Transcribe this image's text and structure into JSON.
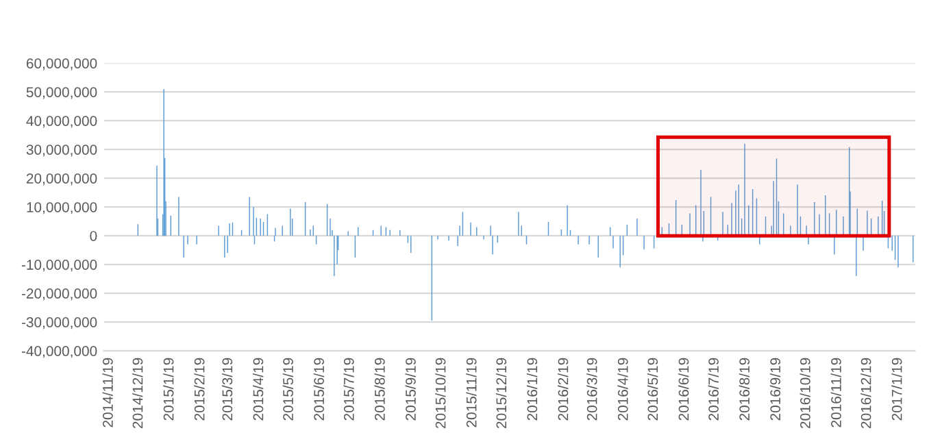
{
  "chart_data": {
    "type": "bar",
    "x": [
      "2014-12-18",
      "2015-01-06",
      "2015-01-07",
      "2015-01-12",
      "2015-01-13",
      "2015-01-14",
      "2015-01-15",
      "2015-01-20",
      "2015-01-28",
      "2015-02-02",
      "2015-02-06",
      "2015-02-15",
      "2015-03-09",
      "2015-03-15",
      "2015-03-18",
      "2015-03-20",
      "2015-03-23",
      "2015-04-01",
      "2015-04-09",
      "2015-04-13",
      "2015-04-14",
      "2015-04-16",
      "2015-04-20",
      "2015-04-23",
      "2015-04-27",
      "2015-05-04",
      "2015-05-05",
      "2015-05-12",
      "2015-05-20",
      "2015-05-22",
      "2015-06-04",
      "2015-06-09",
      "2015-06-12",
      "2015-06-15",
      "2015-06-26",
      "2015-06-29",
      "2015-07-01",
      "2015-07-03",
      "2015-07-06",
      "2015-07-07",
      "2015-07-17",
      "2015-07-24",
      "2015-07-27",
      "2015-08-11",
      "2015-08-19",
      "2015-08-24",
      "2015-08-28",
      "2015-09-07",
      "2015-09-15",
      "2015-09-18",
      "2015-10-09",
      "2015-10-15",
      "2015-10-26",
      "2015-11-04",
      "2015-11-06",
      "2015-11-09",
      "2015-11-17",
      "2015-11-23",
      "2015-11-30",
      "2015-12-07",
      "2015-12-09",
      "2015-12-14",
      "2016-01-04",
      "2016-01-07",
      "2016-01-12",
      "2016-02-03",
      "2016-02-16",
      "2016-02-22",
      "2016-02-25",
      "2016-03-04",
      "2016-03-15",
      "2016-03-24",
      "2016-04-05",
      "2016-04-08",
      "2016-04-15",
      "2016-04-18",
      "2016-04-22",
      "2016-05-02",
      "2016-05-09",
      "2016-05-19",
      "2016-05-27",
      "2016-06-03",
      "2016-06-10",
      "2016-06-16",
      "2016-06-24",
      "2016-06-30",
      "2016-07-05",
      "2016-07-07",
      "2016-07-08",
      "2016-07-15",
      "2016-07-22",
      "2016-07-27",
      "2016-08-01",
      "2016-08-05",
      "2016-08-09",
      "2016-08-12",
      "2016-08-15",
      "2016-08-18",
      "2016-08-22",
      "2016-08-26",
      "2016-08-30",
      "2016-09-02",
      "2016-09-08",
      "2016-09-14",
      "2016-09-16",
      "2016-09-19",
      "2016-09-21",
      "2016-09-26",
      "2016-10-03",
      "2016-10-10",
      "2016-10-13",
      "2016-10-19",
      "2016-10-21",
      "2016-10-27",
      "2016-11-01",
      "2016-11-07",
      "2016-11-11",
      "2016-11-16",
      "2016-11-18",
      "2016-11-25",
      "2016-12-01",
      "2016-12-02",
      "2016-12-08",
      "2016-12-09",
      "2016-12-15",
      "2016-12-19",
      "2016-12-23",
      "2016-12-30",
      "2017-01-03",
      "2017-01-05",
      "2017-01-09",
      "2017-01-13",
      "2017-01-16",
      "2017-01-19",
      "2017-02-03"
    ],
    "values": [
      4000000,
      24400000,
      6000000,
      7500000,
      51000000,
      27000000,
      12000000,
      7000000,
      13500000,
      -7600000,
      -3000000,
      -3000000,
      3500000,
      -7600000,
      -6000000,
      4300000,
      4600000,
      2000000,
      13500000,
      10000000,
      -3000000,
      6200000,
      6000000,
      4800000,
      7500000,
      -2000000,
      2700000,
      3500000,
      9400000,
      6000000,
      11700000,
      2200000,
      3500000,
      -3000000,
      11000000,
      6000000,
      2000000,
      -14000000,
      -10000000,
      -5000000,
      1500000,
      -7600000,
      3000000,
      2000000,
      3500000,
      3000000,
      2000000,
      2000000,
      -2500000,
      -6000000,
      -29500000,
      -1300000,
      -1700000,
      -3600000,
      3500000,
      8300000,
      4600000,
      3000000,
      -1300000,
      3500000,
      -6500000,
      -2400000,
      8300000,
      3500000,
      -3000000,
      4800000,
      2200000,
      10600000,
      2000000,
      -3000000,
      -3000000,
      -7600000,
      3000000,
      -4400000,
      -11000000,
      -6800000,
      3800000,
      6000000,
      -4800000,
      -4400000,
      3000000,
      4300000,
      12400000,
      3800000,
      7800000,
      10600000,
      22900000,
      -2000000,
      8600000,
      13500000,
      -1700000,
      8300000,
      3800000,
      11400000,
      15700000,
      17800000,
      6000000,
      32000000,
      10600000,
      16200000,
      13000000,
      -3000000,
      6700000,
      3500000,
      19000000,
      26800000,
      12000000,
      7800000,
      3500000,
      17800000,
      6700000,
      3500000,
      -3000000,
      11700000,
      7500000,
      14100000,
      7800000,
      -6500000,
      9000000,
      6700000,
      30800000,
      15400000,
      -14000000,
      9400000,
      -5200000,
      8700000,
      6000000,
      6700000,
      12200000,
      8600000,
      -4400000,
      -5200000,
      -8400000,
      -11000000,
      -9200000
    ],
    "color": "#5b9bd5",
    "xlim": [
      "2014-11-14",
      "2017-02-05"
    ],
    "xticks": [
      {
        "value": "2014-11-19",
        "label": "2014/11/19"
      },
      {
        "value": "2014-12-19",
        "label": "2014/12/19"
      },
      {
        "value": "2015-01-19",
        "label": "2015/1/19"
      },
      {
        "value": "2015-02-19",
        "label": "2015/2/19"
      },
      {
        "value": "2015-03-19",
        "label": "2015/3/19"
      },
      {
        "value": "2015-04-19",
        "label": "2015/4/19"
      },
      {
        "value": "2015-05-19",
        "label": "2015/5/19"
      },
      {
        "value": "2015-06-19",
        "label": "2015/6/19"
      },
      {
        "value": "2015-07-19",
        "label": "2015/7/19"
      },
      {
        "value": "2015-08-19",
        "label": "2015/8/19"
      },
      {
        "value": "2015-09-19",
        "label": "2015/9/19"
      },
      {
        "value": "2015-10-19",
        "label": "2015/10/19"
      },
      {
        "value": "2015-11-19",
        "label": "2015/11/19"
      },
      {
        "value": "2015-12-19",
        "label": "2015/12/19"
      },
      {
        "value": "2016-01-19",
        "label": "2016/1/19"
      },
      {
        "value": "2016-02-19",
        "label": "2016/2/19"
      },
      {
        "value": "2016-03-19",
        "label": "2016/3/19"
      },
      {
        "value": "2016-04-19",
        "label": "2016/4/19"
      },
      {
        "value": "2016-05-19",
        "label": "2016/5/19"
      },
      {
        "value": "2016-06-19",
        "label": "2016/6/19"
      },
      {
        "value": "2016-07-19",
        "label": "2016/7/19"
      },
      {
        "value": "2016-08-19",
        "label": "2016/8/19"
      },
      {
        "value": "2016-09-19",
        "label": "2016/9/19"
      },
      {
        "value": "2016-10-19",
        "label": "2016/10/19"
      },
      {
        "value": "2016-11-19",
        "label": "2016/11/19"
      },
      {
        "value": "2016-12-19",
        "label": "2016/12/19"
      },
      {
        "value": "2017-01-19",
        "label": "2017/1/19"
      }
    ],
    "ylim": [
      -40000000,
      60000000
    ],
    "yticks": [
      {
        "value": -40000000,
        "label": "-40,000,000"
      },
      {
        "value": -30000000,
        "label": "-30,000,000"
      },
      {
        "value": -20000000,
        "label": "-20,000,000"
      },
      {
        "value": -10000000,
        "label": "-10,000,000"
      },
      {
        "value": 0,
        "label": "0"
      },
      {
        "value": 10000000,
        "label": "10,000,000"
      },
      {
        "value": 20000000,
        "label": "20,000,000"
      },
      {
        "value": 30000000,
        "label": "30,000,000"
      },
      {
        "value": 40000000,
        "label": "40,000,000"
      },
      {
        "value": 50000000,
        "label": "50,000,000"
      },
      {
        "value": 60000000,
        "label": "60,000,000"
      }
    ],
    "grid": "y",
    "bands": [
      {
        "axis": "x",
        "from": "2016-05-23",
        "to": "2017-01-10",
        "color": "#e00000"
      }
    ]
  }
}
